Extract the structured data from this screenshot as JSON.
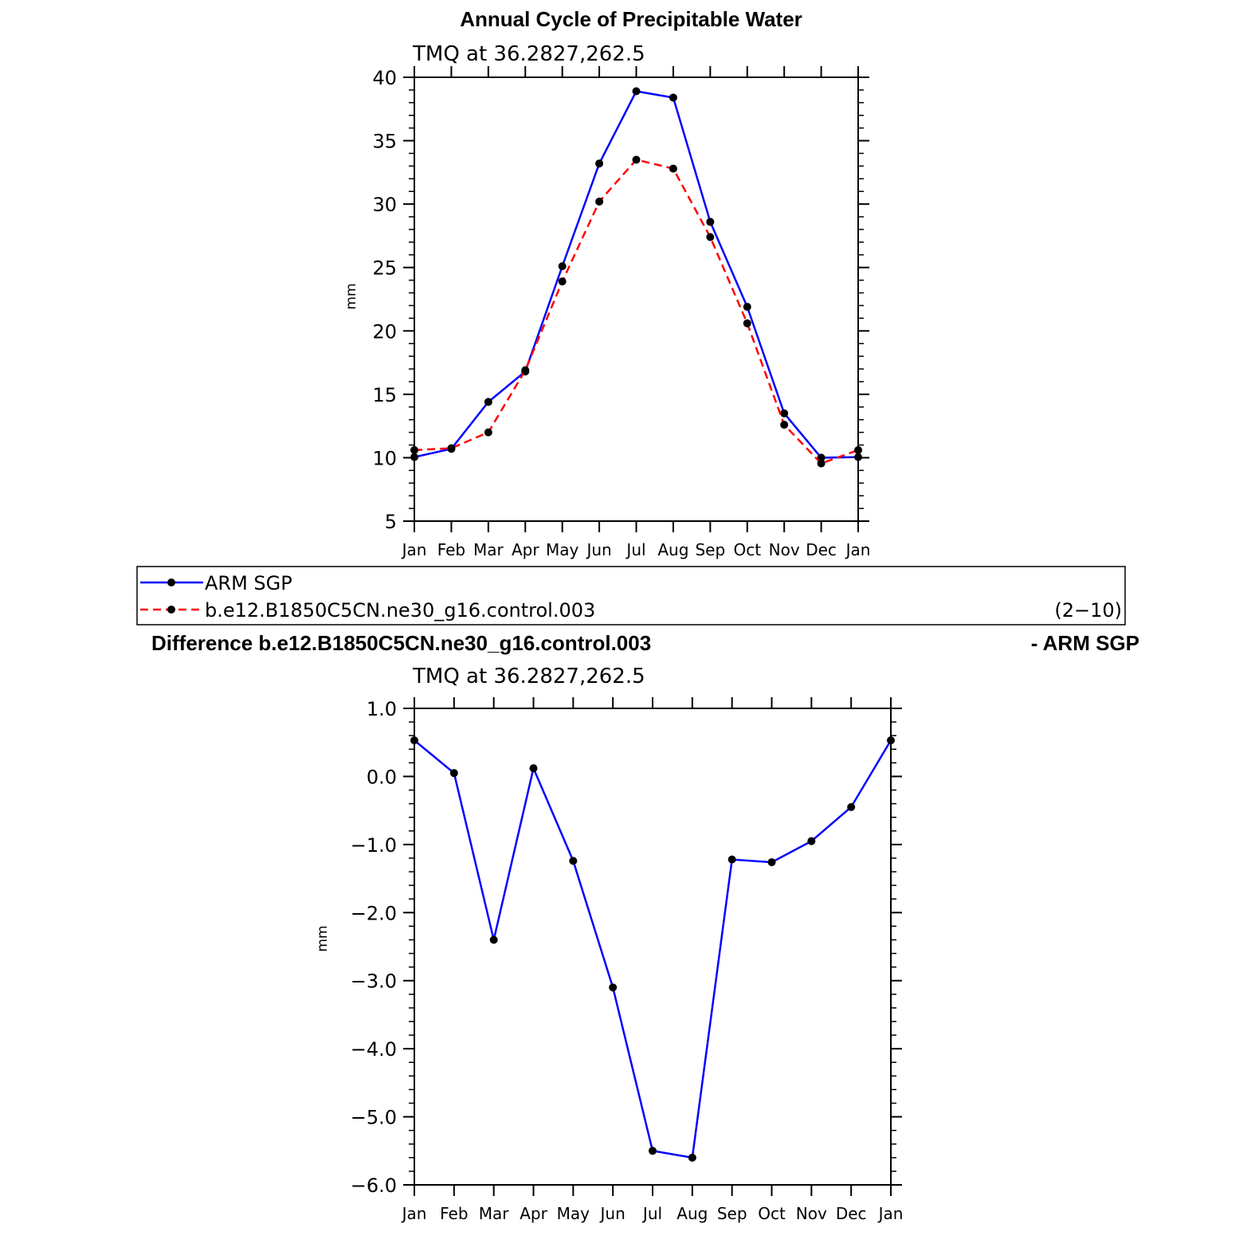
{
  "chart_data": [
    {
      "type": "line",
      "title": "Annual Cycle of Precipitable Water",
      "subtitle": "TMQ at 36.2827,262.5",
      "xlabel": "",
      "ylabel": "mm",
      "categories": [
        "Jan",
        "Feb",
        "Mar",
        "Apr",
        "May",
        "Jun",
        "Jul",
        "Aug",
        "Sep",
        "Oct",
        "Nov",
        "Dec",
        "Jan"
      ],
      "ylim": [
        5,
        40
      ],
      "yticks": [
        "5",
        "10",
        "15",
        "20",
        "25",
        "30",
        "35",
        "40"
      ],
      "ytick_values": [
        5,
        10,
        15,
        20,
        25,
        30,
        35,
        40
      ],
      "grid": false,
      "series": [
        {
          "name": "ARM SGP",
          "color": "#0000ff",
          "style": "solid",
          "values": [
            10.05,
            10.7,
            14.4,
            16.8,
            25.1,
            33.2,
            38.9,
            38.4,
            28.6,
            21.9,
            13.5,
            10.0,
            10.05
          ]
        },
        {
          "name": "b.e12.B1850C5CN.ne30_g16.control.003",
          "color": "#ff0000",
          "style": "dashed",
          "values": [
            10.6,
            10.75,
            12.0,
            16.9,
            23.9,
            30.2,
            33.5,
            32.8,
            27.4,
            20.6,
            12.6,
            9.55,
            10.6
          ]
        }
      ],
      "legend": {
        "placement": "below",
        "note": "(2−10)"
      }
    },
    {
      "type": "line",
      "title": "Difference b.e12.B1850C5CN.ne30_g16.control.003",
      "title_right": "- ARM SGP",
      "subtitle": "TMQ at 36.2827,262.5",
      "xlabel": "",
      "ylabel": "mm",
      "categories": [
        "Jan",
        "Feb",
        "Mar",
        "Apr",
        "May",
        "Jun",
        "Jul",
        "Aug",
        "Sep",
        "Oct",
        "Nov",
        "Dec",
        "Jan"
      ],
      "ylim": [
        -6,
        1
      ],
      "yticks": [
        "−6.0",
        "−5.0",
        "−4.0",
        "−3.0",
        "−2.0",
        "−1.0",
        "0.0",
        "1.0"
      ],
      "ytick_values": [
        -6,
        -5,
        -4,
        -3,
        -2,
        -1,
        0,
        1
      ],
      "grid": false,
      "series": [
        {
          "color": "#0000ff",
          "style": "solid",
          "values": [
            0.53,
            0.05,
            -2.4,
            0.12,
            -1.24,
            -3.1,
            -5.5,
            -5.6,
            -1.22,
            -1.26,
            -0.95,
            -0.45,
            0.53
          ]
        }
      ]
    }
  ]
}
